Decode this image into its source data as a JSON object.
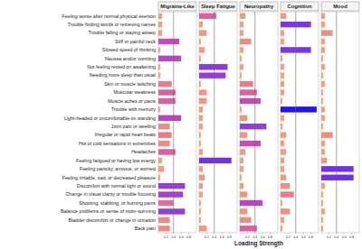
{
  "chart_data": {
    "type": "bar",
    "orientation": "horizontal",
    "x_label": "Loading Strength",
    "categories": [
      "Feeling worse after normal physical exertion",
      "Trouble finding words or retrieving names",
      "Trouble falling or staying asleep",
      "Stiff or painful neck",
      "Slowed speed of thinking",
      "Nausea and/or vomiting",
      "Not feeling rested on awakening",
      "Needing more sleep than usual",
      "Skin or muscle twitching",
      "Muscular weakness",
      "Muscle aches or pains",
      "Trouble with memory",
      "Light-headed or uncomfortable on standing",
      "Joint pain or swelling",
      "Irregular or rapid heart beats",
      "Hot or cold sensations in extremities",
      "Headaches",
      "Feeling fatigued or having low energy",
      "Feeling panicky, anxious, or worried",
      "Feeling irritable, sad, or decreased pleasure",
      "Discomfort with normal light or sound",
      "Change in visual clarity or trouble focusing",
      "Shooting, stabbing, or burning pains",
      "Balance problems or sense of room-spinning",
      "Bladder discomfort or change in urination",
      "Back pain"
    ],
    "series": [
      {
        "name": "Migraine-Like",
        "values": [
          0.1,
          0.1,
          0.1,
          0.55,
          0.05,
          0.6,
          0.05,
          0.05,
          0.35,
          0.45,
          0.45,
          0.05,
          0.6,
          0.3,
          0.35,
          0.3,
          0.45,
          0.1,
          0.15,
          0.05,
          0.7,
          0.65,
          0.4,
          0.7,
          0.3,
          0.3
        ]
      },
      {
        "name": "Sleep Fatigue",
        "values": [
          0.45,
          0.1,
          0.2,
          0.05,
          0.15,
          0.05,
          0.75,
          0.7,
          0.05,
          0.2,
          0.2,
          0.1,
          0.1,
          0.1,
          0.05,
          0.05,
          0.1,
          0.85,
          0.1,
          0.15,
          0.1,
          0.1,
          0.05,
          0.05,
          0.05,
          0.2
        ]
      },
      {
        "name": "Neuropathy",
        "values": [
          0.15,
          0.1,
          0.1,
          0.3,
          0.1,
          0.05,
          0.1,
          0.05,
          0.35,
          0.45,
          0.55,
          0.05,
          0.2,
          0.7,
          0.2,
          0.55,
          0.15,
          0.1,
          0.1,
          0.05,
          0.1,
          0.2,
          0.6,
          0.2,
          0.3,
          0.45
        ]
      },
      {
        "name": "Cognition",
        "values": [
          0.15,
          0.8,
          0.1,
          0.1,
          0.8,
          0.05,
          0.1,
          0.1,
          0.1,
          0.1,
          0.05,
          0.95,
          0.1,
          0.05,
          0.15,
          0.1,
          0.15,
          0.1,
          0.1,
          0.15,
          0.25,
          0.35,
          0.05,
          0.25,
          0.1,
          0.05
        ]
      },
      {
        "name": "Mood",
        "values": [
          0.1,
          0.1,
          0.3,
          0.1,
          0.1,
          0.05,
          0.1,
          0.05,
          0.1,
          0.05,
          0.05,
          0.1,
          0.1,
          0.05,
          0.3,
          0.1,
          0.1,
          0.15,
          0.85,
          0.85,
          0.1,
          0.05,
          0.05,
          0.1,
          0.05,
          0.05
        ]
      }
    ],
    "xlim": [
      0,
      1
    ],
    "xticks": [
      0.2,
      0.4,
      0.6,
      0.8
    ],
    "threshold": 0.4
  }
}
